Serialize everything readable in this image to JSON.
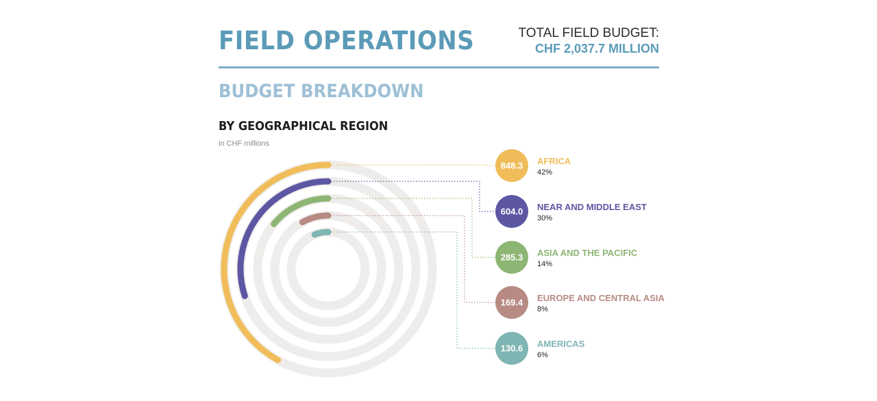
{
  "header": {
    "title": "FIELD OPERATIONS",
    "budget_label": "TOTAL FIELD BUDGET:",
    "budget_value": "CHF 2,037.7 MILLION"
  },
  "section": {
    "title": "BUDGET BREAKDOWN",
    "subtitle": "BY GEOGRAPHICAL REGION",
    "units": "in CHF millions"
  },
  "colors": {
    "track": "#efedeb",
    "title_blue": "#5b9bb8"
  },
  "chart_data": {
    "type": "radial-bar",
    "title": "BY GEOGRAPHICAL REGION",
    "units": "in CHF millions",
    "series": [
      {
        "name": "AFRICA",
        "value": 848.3,
        "value_label": "848.3",
        "percent_label": "42%",
        "percent": 42,
        "color": "#f0bd5a"
      },
      {
        "name": "NEAR AND MIDDLE EAST",
        "value": 604.0,
        "value_label": "604.0",
        "percent_label": "30%",
        "percent": 30,
        "color": "#5c56a3"
      },
      {
        "name": "ASIA AND THE PACIFIC",
        "value": 285.3,
        "value_label": "285.3",
        "percent_label": "14%",
        "percent": 14,
        "color": "#8db574"
      },
      {
        "name": "EUROPE AND CENTRAL ASIA",
        "value": 169.4,
        "value_label": "169.4",
        "percent_label": "8%",
        "percent": 8,
        "color": "#b78b83"
      },
      {
        "name": "AMERICAS",
        "value": 130.6,
        "value_label": "130.6",
        "percent_label": "6%",
        "percent": 6,
        "color": "#7fb5b2"
      }
    ]
  }
}
